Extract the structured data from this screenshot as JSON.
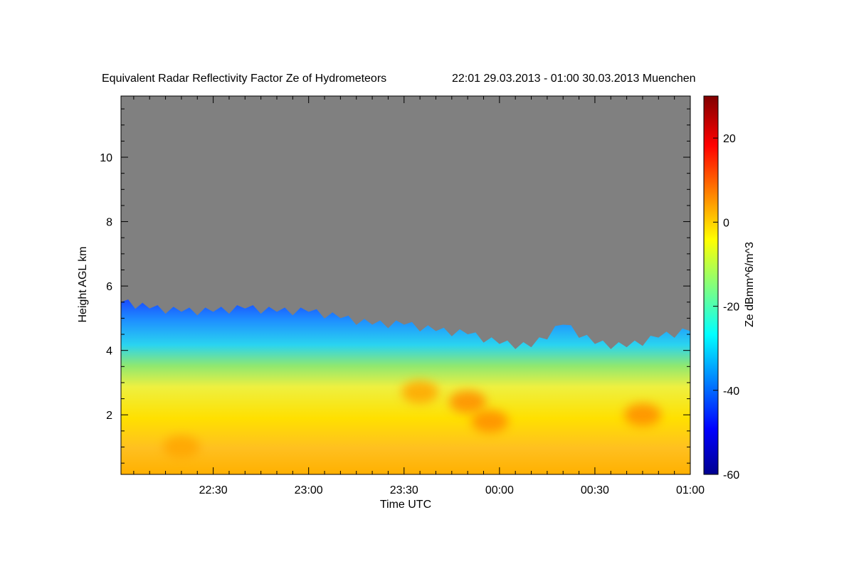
{
  "chart_data": {
    "type": "heatmap",
    "title": "Equivalent Radar Reflectivity Factor Ze of Hydrometeors",
    "subtitle": "22:01 29.03.2013 - 01:00 30.03.2013 Muenchen",
    "xlabel": "Time UTC",
    "ylabel": "Height AGL km",
    "colorbar_label": "Ze dBmm^6/m^3",
    "x_range": [
      "22:01",
      "01:00"
    ],
    "x_ticks": [
      "22:30",
      "23:00",
      "23:30",
      "00:00",
      "00:30",
      "01:00"
    ],
    "ylim": [
      0.15,
      11.9
    ],
    "y_ticks": [
      2,
      4,
      6,
      8,
      10
    ],
    "clim": [
      -60,
      30
    ],
    "colorbar_ticks": [
      -60,
      -40,
      -20,
      0,
      20
    ],
    "colormap": "jet",
    "no_data_color": "#808080",
    "echo_top_km": {
      "time": [
        "22:01",
        "22:10",
        "22:20",
        "22:30",
        "22:40",
        "22:50",
        "23:00",
        "23:10",
        "23:20",
        "23:30",
        "23:40",
        "23:50",
        "00:00",
        "00:10",
        "00:20",
        "00:30",
        "00:40",
        "00:50",
        "01:00"
      ],
      "height": [
        5.5,
        5.3,
        5.2,
        5.2,
        5.3,
        5.2,
        5.2,
        5.0,
        4.8,
        4.8,
        4.6,
        4.5,
        4.2,
        4.1,
        4.8,
        4.2,
        4.1,
        4.4,
        4.6
      ]
    },
    "strong_echo_zones": [
      {
        "time": "23:35",
        "height_km": 2.7,
        "ze_dbz": 5
      },
      {
        "time": "23:50",
        "height_km": 2.4,
        "ze_dbz": 8
      },
      {
        "time": "23:57",
        "height_km": 1.8,
        "ze_dbz": 6
      },
      {
        "time": "00:45",
        "height_km": 2.0,
        "ze_dbz": 6
      },
      {
        "time": "22:20",
        "height_km": 1.0,
        "ze_dbz": 2
      }
    ]
  }
}
